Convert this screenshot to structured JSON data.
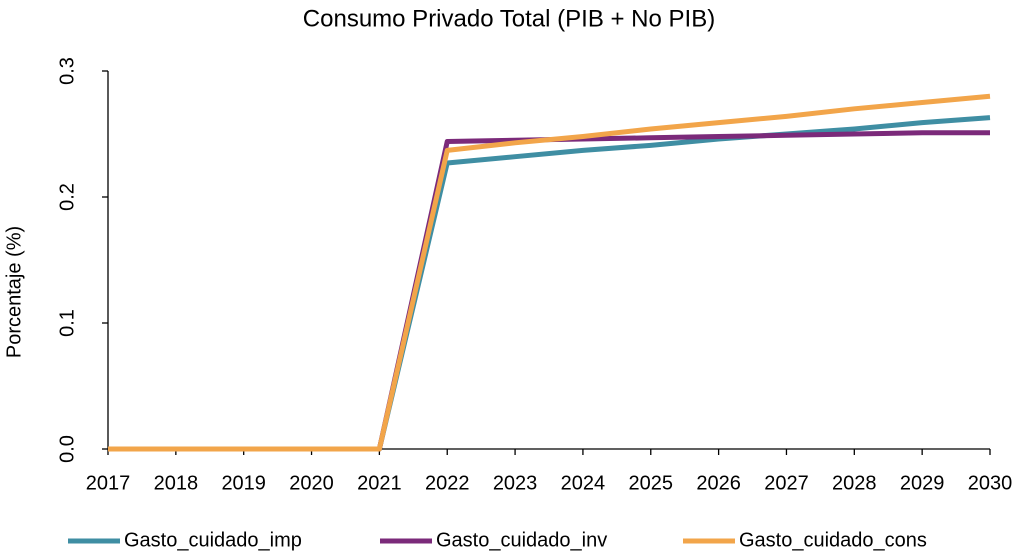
{
  "chart_data": {
    "type": "line",
    "title": "Consumo Privado Total (PIB + No PIB)",
    "y_label": "Porcentaje (%)",
    "categories": [
      "2017",
      "2018",
      "2019",
      "2020",
      "2021",
      "2022",
      "2023",
      "2024",
      "2025",
      "2026",
      "2027",
      "2028",
      "2029",
      "2030"
    ],
    "series": [
      {
        "name": "Gasto_cuidado_imp",
        "color": "#3f8ea3",
        "values": [
          0,
          0,
          0,
          0,
          0,
          0.227,
          0.232,
          0.237,
          0.241,
          0.246,
          0.25,
          0.254,
          0.259,
          0.263
        ]
      },
      {
        "name": "Gasto_cuidado_inv",
        "color": "#7b2a7a",
        "values": [
          0,
          0,
          0,
          0,
          0,
          0.244,
          0.245,
          0.246,
          0.247,
          0.248,
          0.249,
          0.25,
          0.251,
          0.251
        ]
      },
      {
        "name": "Gasto_cuidado_cons",
        "color": "#f2a54a",
        "values": [
          0,
          0,
          0,
          0,
          0,
          0.237,
          0.243,
          0.248,
          0.254,
          0.259,
          0.264,
          0.27,
          0.275,
          0.28
        ]
      }
    ],
    "ylim": [
      0,
      0.3
    ],
    "yticks": [
      {
        "value": 0,
        "label": "0.0"
      },
      0.1,
      0.2,
      0.3
    ],
    "legend": "bottom"
  }
}
